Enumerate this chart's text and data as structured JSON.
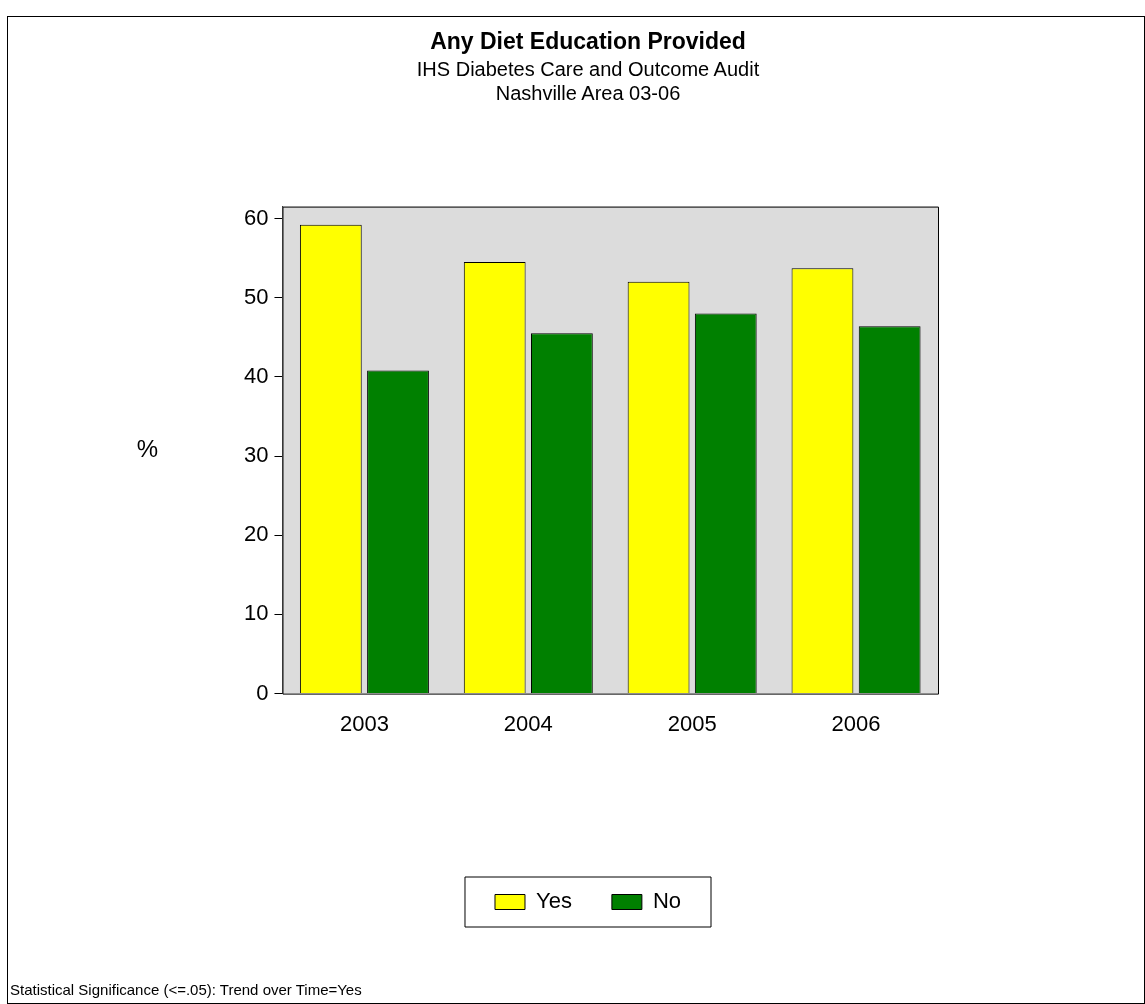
{
  "chart_data": {
    "type": "bar",
    "title": "Any Diet Education Provided",
    "subtitle": "IHS Diabetes Care and Outcome Audit\nNashville Area 03-06",
    "ylabel": "%",
    "categories": [
      "2003",
      "2004",
      "2005",
      "2006"
    ],
    "series": [
      {
        "name": "Yes",
        "color": "#ffff00",
        "values": [
          59.2,
          54.5,
          52.0,
          53.7
        ]
      },
      {
        "name": "No",
        "color": "#008000",
        "values": [
          40.8,
          45.5,
          48.0,
          46.4
        ]
      }
    ],
    "ylim": [
      0,
      61.5
    ],
    "yticks": [
      0,
      10,
      20,
      30,
      40,
      50,
      60
    ],
    "grid": false,
    "legend": "bottom",
    "annotations": [
      "Statistical Significance (<=.05): Trend over Time=Yes"
    ]
  }
}
